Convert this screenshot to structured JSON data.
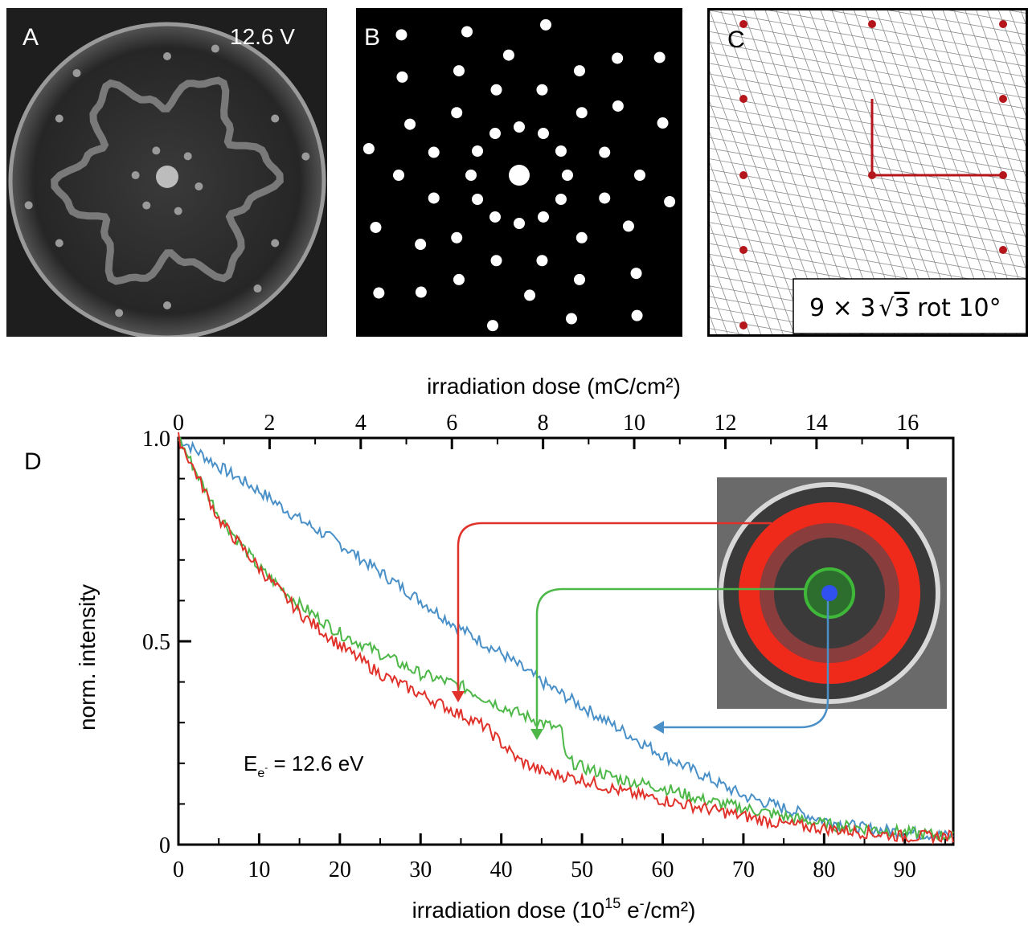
{
  "panels": {
    "a": {
      "label": "A",
      "voltage": "12.6 V"
    },
    "b": {
      "label": "B"
    },
    "c": {
      "label": "C",
      "formula_lead": "9 × 3",
      "formula_radicand": "3",
      "formula_tail": " rot 10°"
    },
    "d": {
      "label": "D"
    }
  },
  "colors": {
    "red": "#e0322a",
    "green": "#4db848",
    "blue": "#4a90c8",
    "spot": "#b5161c"
  },
  "chart_data": {
    "type": "line",
    "xlabel_base": "irradiation dose (10",
    "xlabel_exp": "15",
    "xlabel_unit": " e",
    "xlabel_unit_sup": "-",
    "xlabel_tail": "/cm²)",
    "x2label": "irradiation dose (mC/cm²)",
    "ylabel": "norm. intensity",
    "xlim": [
      0,
      96
    ],
    "x2lim": [
      0,
      17
    ],
    "ylim": [
      0,
      1.0
    ],
    "xticks": [
      0,
      10,
      20,
      30,
      40,
      50,
      60,
      70,
      80,
      90
    ],
    "x2ticks": [
      0,
      2,
      4,
      6,
      8,
      10,
      12,
      14,
      16
    ],
    "yticks": [
      0,
      0.5,
      1.0
    ],
    "ytick_labels": [
      "0",
      "0.5",
      "1.0"
    ],
    "annotation_base": "E",
    "annotation_sub": "e",
    "annotation_subsup": "-",
    "annotation_tail": " = 12.6 eV",
    "grid": false,
    "series": [
      {
        "color": "#4a90c8",
        "x": [
          0,
          5,
          10,
          15,
          20,
          25,
          30,
          35,
          40,
          45,
          50,
          55,
          60,
          65,
          70,
          75,
          80,
          85,
          90,
          96
        ],
        "y": [
          1.0,
          0.93,
          0.87,
          0.8,
          0.74,
          0.67,
          0.6,
          0.53,
          0.47,
          0.4,
          0.34,
          0.28,
          0.22,
          0.17,
          0.12,
          0.09,
          0.06,
          0.04,
          0.03,
          0.02
        ]
      },
      {
        "color": "#4db848",
        "x": [
          0,
          5,
          10,
          15,
          20,
          25,
          30,
          35,
          40,
          45,
          47.5,
          48,
          50,
          55,
          60,
          65,
          70,
          75,
          80,
          85,
          90,
          96
        ],
        "y": [
          1.0,
          0.81,
          0.68,
          0.59,
          0.52,
          0.47,
          0.42,
          0.39,
          0.34,
          0.3,
          0.28,
          0.21,
          0.19,
          0.16,
          0.14,
          0.11,
          0.09,
          0.07,
          0.05,
          0.04,
          0.03,
          0.02
        ]
      },
      {
        "color": "#e0322a",
        "x": [
          0,
          5,
          10,
          15,
          20,
          25,
          30,
          35,
          38,
          40,
          42,
          45,
          50,
          55,
          60,
          65,
          70,
          75,
          80,
          85,
          90,
          96
        ],
        "y": [
          1.0,
          0.8,
          0.68,
          0.57,
          0.49,
          0.42,
          0.37,
          0.32,
          0.29,
          0.25,
          0.21,
          0.18,
          0.16,
          0.13,
          0.11,
          0.09,
          0.07,
          0.05,
          0.04,
          0.03,
          0.02,
          0.02
        ]
      }
    ]
  }
}
